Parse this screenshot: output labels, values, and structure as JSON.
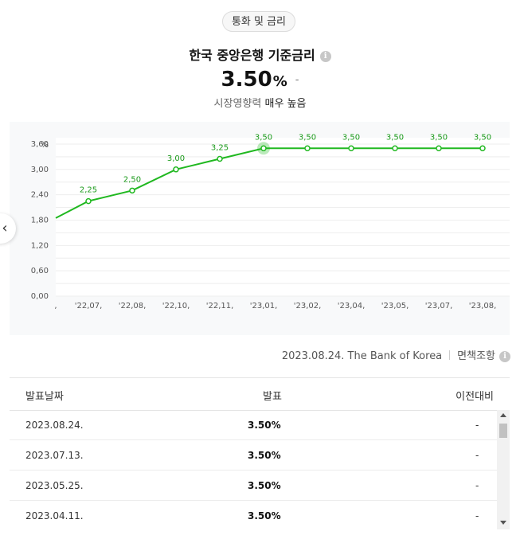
{
  "category_pill": "통화 및 금리",
  "title": "한국 중앙은행 기준금리",
  "info_glyph": "i",
  "rate": {
    "value": "3.50",
    "unit": "%",
    "change": "-"
  },
  "impact": {
    "label": "시장영향력",
    "level": "매우 높음"
  },
  "source": {
    "date_source": "2023.08.24. The Bank of Korea",
    "disclaimer": "면책조항"
  },
  "nav": {
    "prev_glyph": "‹"
  },
  "chart_data": {
    "type": "line",
    "ylabel": "%",
    "ylim": [
      0,
      3.75
    ],
    "y_ticks": [
      "3,60",
      "3,00",
      "2,40",
      "1,80",
      "1,20",
      "0,60",
      "0,00"
    ],
    "y_tick_values": [
      3.6,
      3.0,
      2.4,
      1.8,
      1.2,
      0.6,
      0.0
    ],
    "x_ticks": [
      ",",
      "'22,07,",
      "'22,08,",
      "'22,10,",
      "'22,11,",
      "'23,01,",
      "'23,02,",
      "'23,04,",
      "'23,05,",
      "'23,07,",
      "'23,08,"
    ],
    "series": [
      {
        "values": [
          1.85,
          2.25,
          2.5,
          3.0,
          3.25,
          3.5,
          3.5,
          3.5,
          3.5,
          3.5,
          3.5
        ],
        "labels": [
          "",
          "2,25",
          "2,50",
          "3,00",
          "3,25",
          "3,50",
          "3,50",
          "3,50",
          "3,50",
          "3,50",
          "3,50"
        ]
      }
    ],
    "highlight_index": 5,
    "line_color": "#20b820",
    "grid": true
  },
  "table": {
    "headers": [
      "발표날짜",
      "발표",
      "이전대비"
    ],
    "rows": [
      {
        "date": "2023.08.24.",
        "value": "3.50%",
        "prev": "-"
      },
      {
        "date": "2023.07.13.",
        "value": "3.50%",
        "prev": "-"
      },
      {
        "date": "2023.05.25.",
        "value": "3.50%",
        "prev": "-"
      },
      {
        "date": "2023.04.11.",
        "value": "3.50%",
        "prev": "-"
      }
    ]
  }
}
